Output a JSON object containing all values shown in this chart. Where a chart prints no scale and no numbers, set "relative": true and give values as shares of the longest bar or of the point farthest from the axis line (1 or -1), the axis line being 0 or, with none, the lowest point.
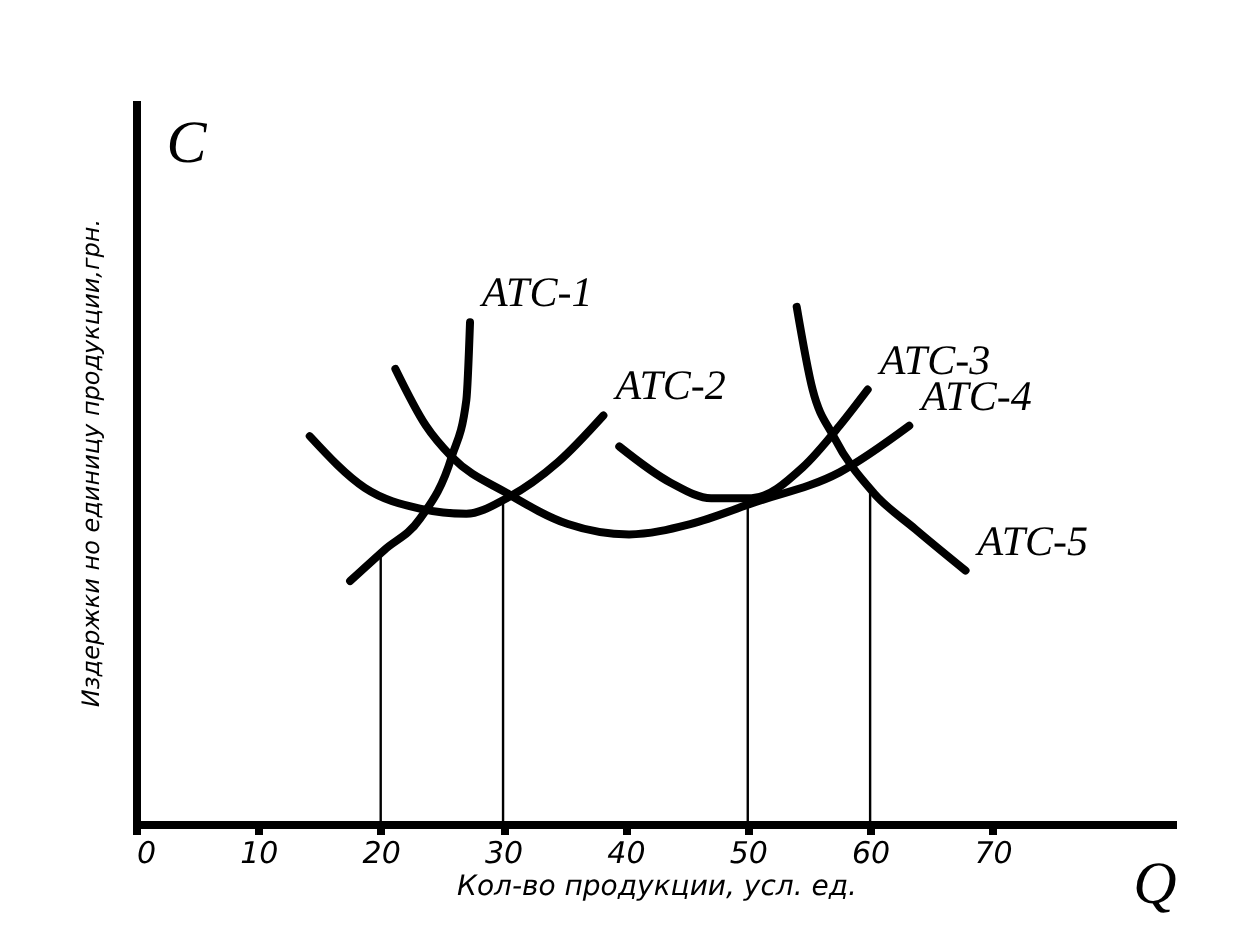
{
  "chart_data": {
    "type": "line",
    "relative": true,
    "xlabel": "Кол-во продукции,  усл. ед.",
    "ylabel": "Издержки но единицу продукции,грн.",
    "annotations": [
      "C",
      "Q"
    ],
    "xlim": [
      0,
      85
    ],
    "xticks": [
      0,
      10,
      20,
      30,
      40,
      50,
      60,
      70
    ],
    "grid": false,
    "legend": false,
    "marker": "none",
    "line_style": "solid",
    "ref_lines": [
      {
        "axis": "x",
        "value": 20
      },
      {
        "axis": "x",
        "value": 30
      },
      {
        "axis": "x",
        "value": 50
      },
      {
        "axis": "x",
        "value": 60
      }
    ],
    "series": [
      {
        "name": "ATC-1",
        "color": "#000000",
        "x": [
          17.5,
          20.3,
          23.2,
          25.8,
          27,
          27.3
        ],
        "values": [
          0.47,
          0.53,
          0.59,
          0.71,
          0.82,
          0.97
        ]
      },
      {
        "name": "ATC-2",
        "color": "#000000",
        "x": [
          14.2,
          18.7,
          23.2,
          27,
          30.3,
          34.5,
          38.2
        ],
        "values": [
          0.75,
          0.65,
          0.61,
          0.6,
          0.63,
          0.7,
          0.79
        ]
      },
      {
        "name": "ATC-3",
        "color": "#000000",
        "x": [
          39.5,
          43.7,
          47,
          50.3,
          54.5,
          57.5,
          59.8
        ],
        "values": [
          0.73,
          0.66,
          0.63,
          0.63,
          0.69,
          0.77,
          0.84
        ]
      },
      {
        "name": "ATC-4",
        "color": "#000000",
        "x": [
          21.2,
          23.7,
          25.8,
          30.3,
          35.3,
          40.3,
          45.3,
          50.3,
          57.5,
          63.2
        ],
        "values": [
          0.88,
          0.77,
          0.71,
          0.64,
          0.58,
          0.56,
          0.58,
          0.62,
          0.68,
          0.77
        ]
      },
      {
        "name": "ATC-5",
        "color": "#000000",
        "x": [
          54,
          55.3,
          57,
          60.3,
          63.7,
          67.8
        ],
        "values": [
          1,
          0.84,
          0.75,
          0.64,
          0.57,
          0.49
        ]
      }
    ]
  }
}
